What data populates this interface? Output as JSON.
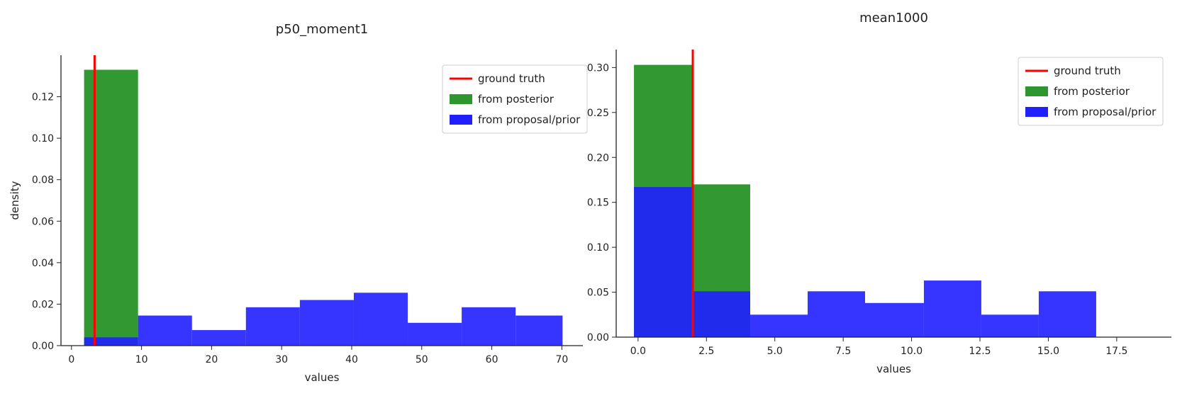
{
  "chart_data": [
    {
      "type": "bar",
      "title": "p50_moment1",
      "xlabel": "values",
      "ylabel": "density",
      "xlim": [
        -1.5,
        73
      ],
      "ylim": [
        0,
        0.14
      ],
      "xticks": [
        0,
        10,
        20,
        30,
        40,
        50,
        60,
        70
      ],
      "yticks": [
        0.0,
        0.02,
        0.04,
        0.06,
        0.08,
        0.1,
        0.12
      ],
      "ytick_labels": [
        "0.00",
        "0.02",
        "0.04",
        "0.06",
        "0.08",
        "0.10",
        "0.12"
      ],
      "xtick_labels": [
        "0",
        "10",
        "20",
        "30",
        "40",
        "50",
        "60",
        "70"
      ],
      "grid": false,
      "legend_position": "top-right",
      "ground_truth": 3.3,
      "series": [
        {
          "name": "from posterior",
          "color": "#2e962e",
          "bins": [
            {
              "x0": 1.8,
              "x1": 9.5,
              "value": 0.133
            }
          ]
        },
        {
          "name": "from proposal/prior",
          "color": "#1f1fff",
          "bins": [
            {
              "x0": 1.8,
              "x1": 9.5,
              "value": 0.004
            },
            {
              "x0": 9.5,
              "x1": 17.2,
              "value": 0.0145
            },
            {
              "x0": 17.2,
              "x1": 24.9,
              "value": 0.0075
            },
            {
              "x0": 24.9,
              "x1": 32.6,
              "value": 0.0185
            },
            {
              "x0": 32.6,
              "x1": 40.3,
              "value": 0.022
            },
            {
              "x0": 40.3,
              "x1": 48.0,
              "value": 0.0255
            },
            {
              "x0": 48.0,
              "x1": 55.7,
              "value": 0.011
            },
            {
              "x0": 55.7,
              "x1": 63.4,
              "value": 0.0185
            },
            {
              "x0": 63.4,
              "x1": 70.1,
              "value": 0.0145
            }
          ]
        }
      ],
      "legend": [
        "ground truth",
        "from posterior",
        "from proposal/prior"
      ]
    },
    {
      "type": "bar",
      "title": "mean1000",
      "xlabel": "values",
      "ylabel": "",
      "xlim": [
        -0.8,
        19.5
      ],
      "ylim": [
        0,
        0.32
      ],
      "xticks": [
        0.0,
        2.5,
        5.0,
        7.5,
        10.0,
        12.5,
        15.0,
        17.5
      ],
      "xtick_labels": [
        "0.0",
        "2.5",
        "5.0",
        "7.5",
        "10.0",
        "12.5",
        "15.0",
        "17.5"
      ],
      "yticks": [
        0.0,
        0.05,
        0.1,
        0.15,
        0.2,
        0.25,
        0.3
      ],
      "ytick_labels": [
        "0.00",
        "0.05",
        "0.10",
        "0.15",
        "0.20",
        "0.25",
        "0.30"
      ],
      "grid": false,
      "legend_position": "top-right",
      "ground_truth": 2.0,
      "series": [
        {
          "name": "from posterior",
          "color": "#2e962e",
          "bins": [
            {
              "x0": -0.15,
              "x1": 2.0,
              "value": 0.303
            },
            {
              "x0": 2.0,
              "x1": 4.1,
              "value": 0.17
            }
          ]
        },
        {
          "name": "from proposal/prior",
          "color": "#1f1fff",
          "bins": [
            {
              "x0": -0.15,
              "x1": 2.0,
              "value": 0.167
            },
            {
              "x0": 2.0,
              "x1": 4.1,
              "value": 0.051
            },
            {
              "x0": 4.1,
              "x1": 6.2,
              "value": 0.025
            },
            {
              "x0": 6.2,
              "x1": 8.3,
              "value": 0.051
            },
            {
              "x0": 8.3,
              "x1": 10.45,
              "value": 0.038
            },
            {
              "x0": 10.45,
              "x1": 12.55,
              "value": 0.063
            },
            {
              "x0": 12.55,
              "x1": 14.65,
              "value": 0.025
            },
            {
              "x0": 14.65,
              "x1": 16.75,
              "value": 0.051
            }
          ]
        }
      ],
      "legend": [
        "ground truth",
        "from posterior",
        "from proposal/prior"
      ]
    }
  ],
  "colors": {
    "ground_truth": "#ff0000",
    "posterior": "#2e962e",
    "prior": "#1f1fff"
  }
}
